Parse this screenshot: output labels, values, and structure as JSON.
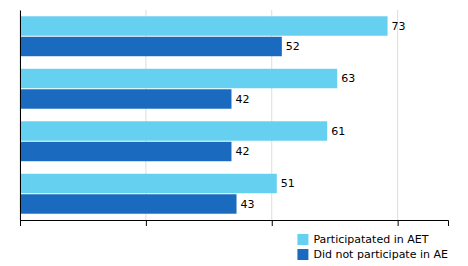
{
  "chart_data": {
    "type": "bar",
    "orientation": "horizontal",
    "categories": [
      null,
      null,
      null,
      null
    ],
    "series": [
      {
        "name": "Participatated in AET",
        "color": "#66d0f0",
        "values": [
          73,
          63,
          61,
          51
        ]
      },
      {
        "name": "Did not participate in AE",
        "color": "#1a6bbf",
        "values": [
          52,
          42,
          42,
          43
        ]
      }
    ],
    "xlim": [
      0,
      85
    ],
    "xticks": [
      0,
      25,
      50,
      75
    ],
    "grid": true,
    "tick_labels": false,
    "data_labels": true,
    "legend": "lower right"
  }
}
